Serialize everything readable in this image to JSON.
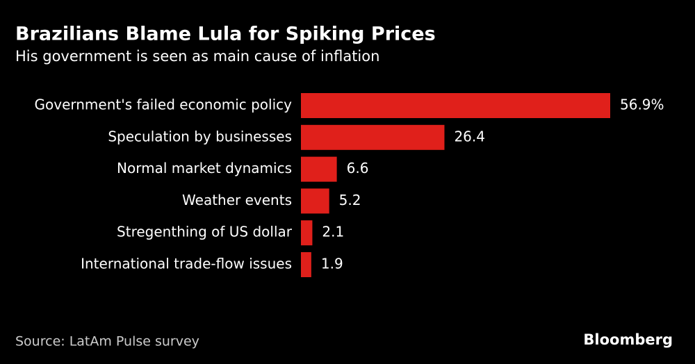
{
  "chart_data": {
    "type": "hbar",
    "title": "Brazilians Blame Lula for Spiking Prices",
    "subtitle": "His government is seen as main cause of inflation",
    "categories": [
      "Government's failed economic policy",
      "Speculation by businesses",
      "Normal market dynamics",
      "Weather events",
      "Stregenthing of US dollar",
      "International trade-flow issues"
    ],
    "values": [
      56.9,
      26.4,
      6.6,
      5.2,
      2.1,
      1.9
    ],
    "value_labels": [
      "56.9%",
      "26.4",
      "6.6",
      "5.2",
      "2.1",
      "1.9"
    ],
    "color": "#e0201b",
    "source": "Source: LatAm Pulse survey",
    "brand": "Bloomberg"
  }
}
